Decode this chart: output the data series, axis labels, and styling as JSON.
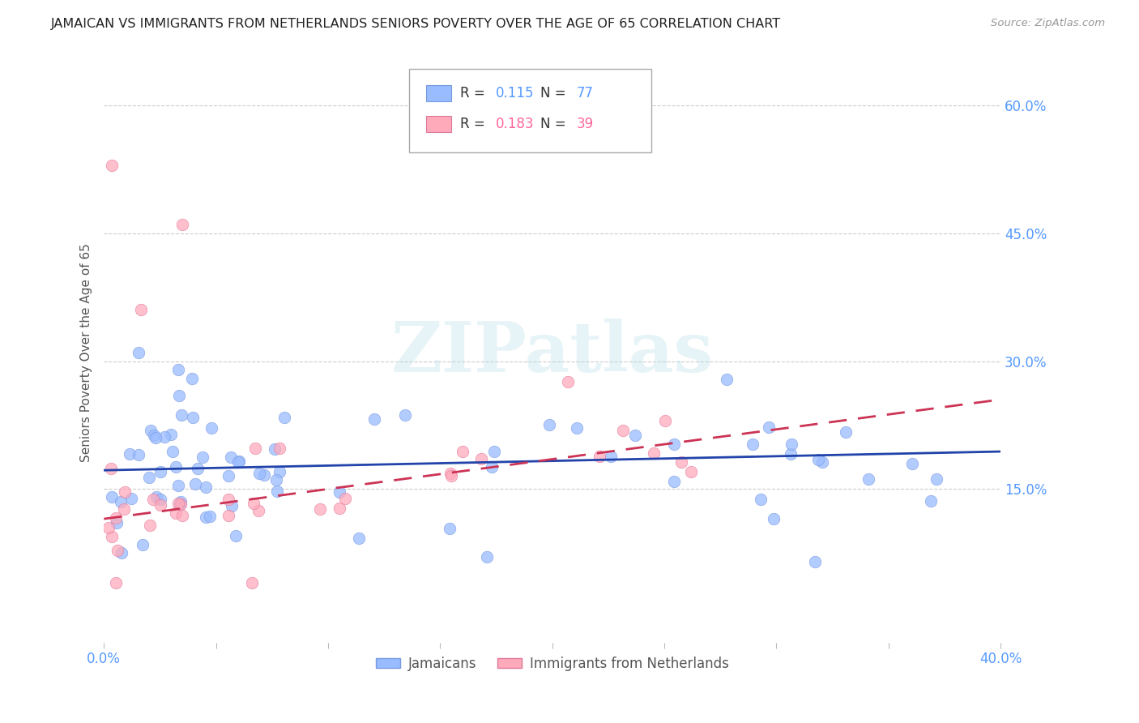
{
  "title": "JAMAICAN VS IMMIGRANTS FROM NETHERLANDS SENIORS POVERTY OVER THE AGE OF 65 CORRELATION CHART",
  "source": "Source: ZipAtlas.com",
  "ylabel": "Seniors Poverty Over the Age of 65",
  "xlim": [
    0.0,
    0.4
  ],
  "ylim": [
    -0.03,
    0.65
  ],
  "yticks_right": [
    0.15,
    0.3,
    0.45,
    0.6
  ],
  "grid_color": "#cccccc",
  "background_color": "#ffffff",
  "blue_color": "#99bbff",
  "pink_color": "#ffaabb",
  "blue_line_color": "#2244aa",
  "pink_line_color": "#cc3355",
  "R_blue": 0.115,
  "N_blue": 77,
  "R_pink": 0.183,
  "N_pink": 39,
  "watermark": "ZIPatlas",
  "legend_label_blue": "Jamaicans",
  "legend_label_pink": "Immigrants from Netherlands",
  "blue_intercept": 0.172,
  "blue_slope": 0.055,
  "pink_intercept": 0.115,
  "pink_slope": 0.35
}
